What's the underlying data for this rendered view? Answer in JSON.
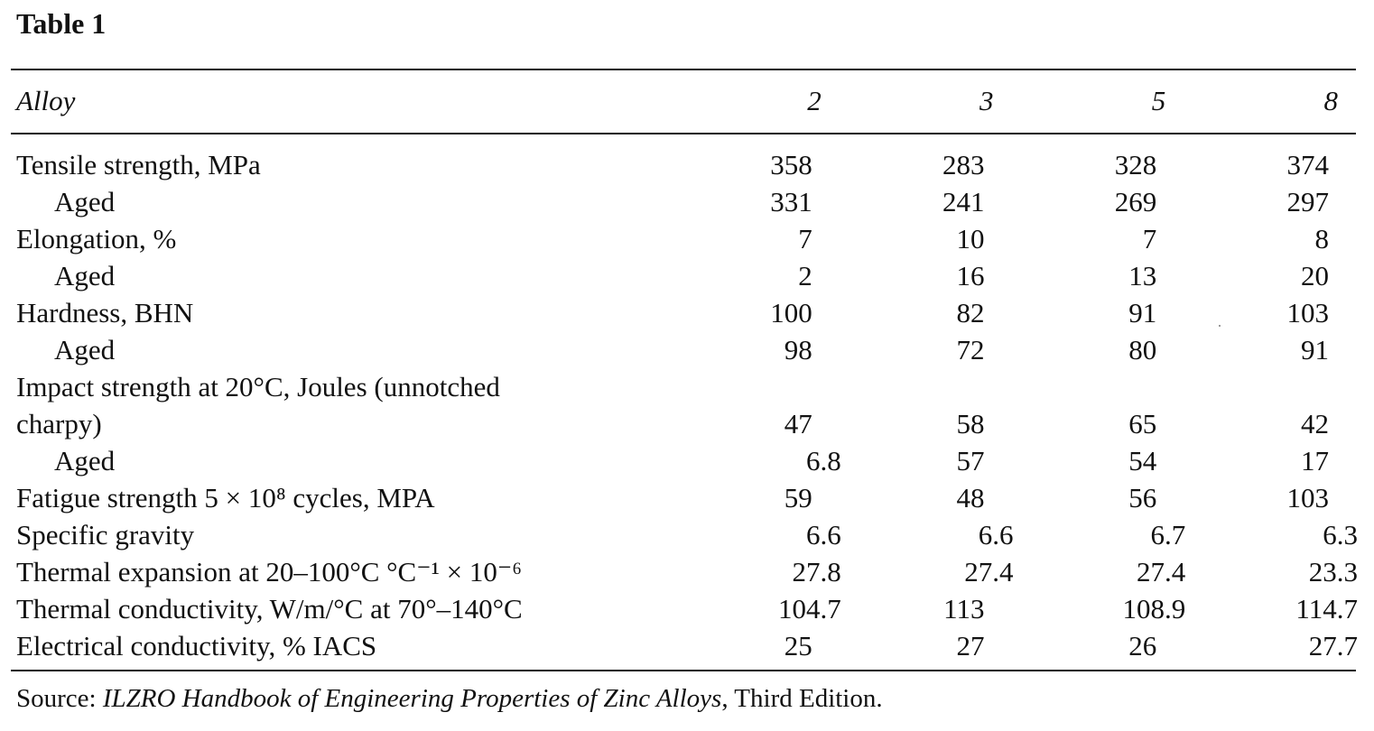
{
  "title": "Table 1",
  "header": {
    "label": "Alloy",
    "columns": [
      "2",
      "3",
      "5",
      "8"
    ]
  },
  "rows": [
    {
      "label": "Tensile strength, MPa",
      "values": [
        "358",
        "283",
        "328",
        "374"
      ]
    },
    {
      "label": "Aged",
      "sub": true,
      "values": [
        "331",
        "241",
        "269",
        "297"
      ]
    },
    {
      "label": "Elongation, %",
      "values": [
        "7",
        "10",
        "7",
        "8"
      ]
    },
    {
      "label": "Aged",
      "sub": true,
      "values": [
        "2",
        "16",
        "13",
        "20"
      ]
    },
    {
      "label": "Hardness, BHN",
      "values": [
        "100",
        "82",
        "91",
        "103"
      ]
    },
    {
      "label": "Aged",
      "sub": true,
      "values": [
        "98",
        "72",
        "80",
        "91"
      ]
    },
    {
      "label": "Impact strength at 20°C, Joules (unnotched",
      "values": [
        "",
        "",
        "",
        ""
      ]
    },
    {
      "label": "charpy)",
      "values": [
        "47",
        "58",
        "65",
        "42"
      ]
    },
    {
      "label": "Aged",
      "sub": true,
      "values": [
        "6.8",
        "57",
        "54",
        "17"
      ]
    },
    {
      "label": "Fatigue strength 5 × 10⁸ cycles, MPA",
      "values": [
        "59",
        "48",
        "56",
        "103"
      ]
    },
    {
      "label": "Specific gravity",
      "values": [
        "6.6",
        "6.6",
        "6.7",
        "6.3"
      ]
    },
    {
      "label": "Thermal expansion at 20–100°C °C⁻¹ × 10⁻⁶",
      "values": [
        "27.8",
        "27.4",
        "27.4",
        "23.3"
      ]
    },
    {
      "label": "Thermal conductivity, W/m/°C at 70°–140°C",
      "values": [
        "104.7",
        "113",
        "108.9",
        "114.7"
      ]
    },
    {
      "label": "Electrical conductivity, % IACS",
      "values": [
        "25",
        "27",
        "26",
        "27.7"
      ]
    }
  ],
  "source": {
    "prefix": "Source: ",
    "title": "ILZRO Handbook of Engineering Properties of Zinc Alloys",
    "suffix": ", Third Edition."
  }
}
